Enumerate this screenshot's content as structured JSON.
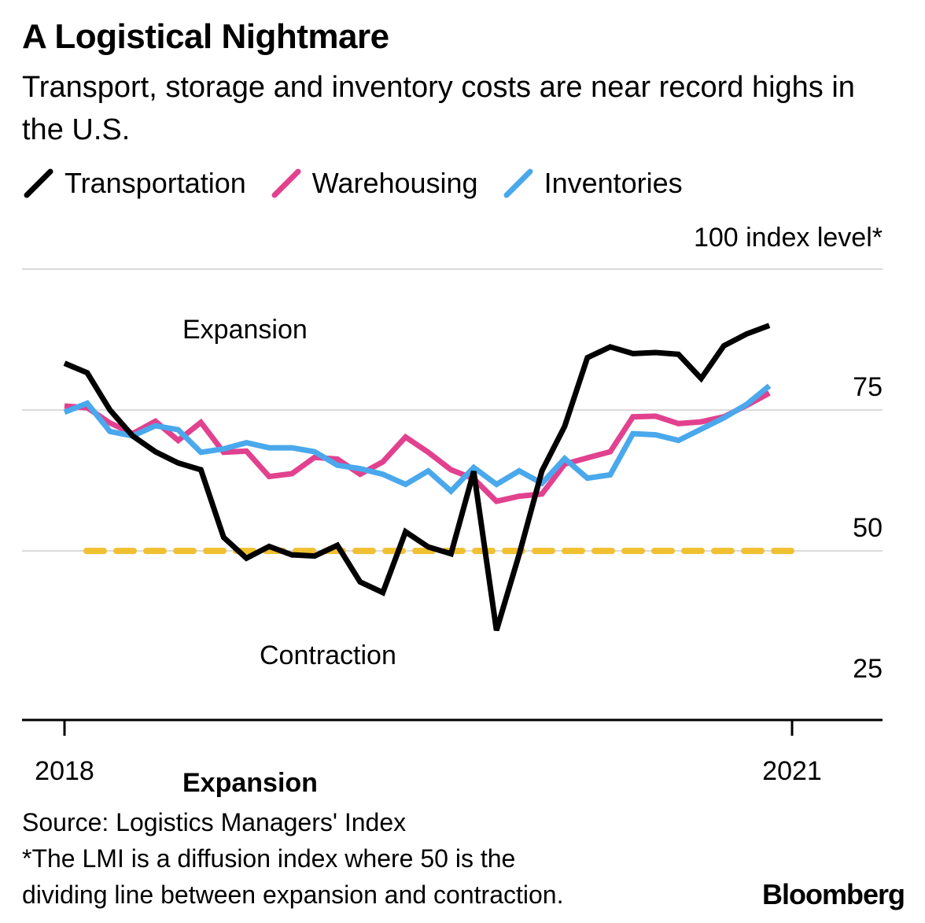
{
  "title": "A Logistical Nightmare",
  "subtitle": "Transport, storage and inventory costs are near record highs in the U.S.",
  "footer": {
    "source": "Source: Logistics Managers' Index",
    "note_line1": "*The LMI is a diffusion index where 50 is the",
    "note_line2": "dividing line between expansion and contraction."
  },
  "brand": "Bloomberg",
  "colors": {
    "transportation": "#000000",
    "warehousing": "#e2418f",
    "inventories": "#4aa8ec",
    "threshold": "#f0c030",
    "grid": "#d9d9d9"
  },
  "chart_data": {
    "type": "line",
    "title": "A Logistical Nightmare",
    "unit_label": "100 index level*",
    "ylim": [
      20,
      100
    ],
    "y_ticks": [
      "25",
      "50",
      "75"
    ],
    "x_ticks": [
      "2018",
      "2021"
    ],
    "annotations": {
      "expansion": "Expansion",
      "contraction": "Contraction",
      "expansion_below_axis": "Expansion"
    },
    "threshold": 50,
    "x_range": [
      0,
      32
    ],
    "series": [
      {
        "name": "Transportation",
        "color": "#000000",
        "values": [
          83.3,
          81.6,
          75.0,
          70.4,
          67.6,
          65.6,
          64.4,
          52.4,
          48.7,
          50.8,
          49.3,
          49.1,
          51.0,
          44.5,
          42.6,
          53.4,
          50.7,
          49.5,
          64.1,
          35.9,
          49.4,
          64.2,
          72.1,
          84.3,
          86.2,
          85.0,
          85.2,
          84.9,
          80.6,
          86.4,
          88.5,
          90.0
        ]
      },
      {
        "name": "Warehousing",
        "color": "#e2418f",
        "values": [
          75.7,
          75.4,
          72.7,
          70.8,
          73.0,
          69.6,
          72.8,
          67.5,
          67.7,
          63.2,
          63.7,
          66.6,
          66.3,
          63.6,
          65.8,
          70.2,
          67.5,
          64.4,
          62.8,
          58.8,
          59.7,
          60.1,
          65.4,
          66.5,
          67.6,
          73.8,
          73.9,
          72.6,
          72.9,
          73.8,
          75.8,
          78.0
        ]
      },
      {
        "name": "Inventories",
        "color": "#4aa8ec",
        "values": [
          74.6,
          76.2,
          71.2,
          70.4,
          72.2,
          71.5,
          67.5,
          68.1,
          69.2,
          68.3,
          68.3,
          67.6,
          65.2,
          64.6,
          63.6,
          61.8,
          64.2,
          60.6,
          64.8,
          61.8,
          64.2,
          62.0,
          66.4,
          62.9,
          63.5,
          70.8,
          70.6,
          69.6,
          71.6,
          73.6,
          76.0,
          79.3
        ]
      }
    ]
  }
}
